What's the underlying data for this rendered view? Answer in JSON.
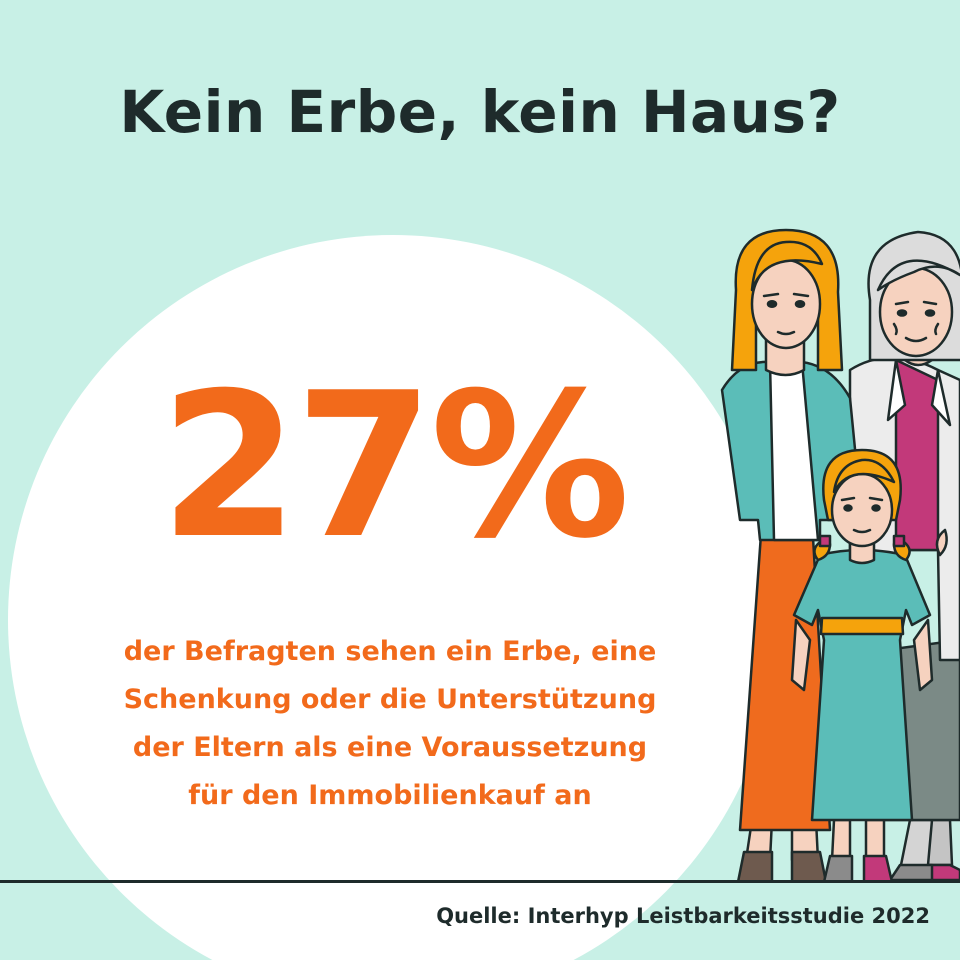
{
  "headline": "Kein Erbe, kein Haus?",
  "stat": {
    "value": "27%",
    "lines": [
      "der Befragten sehen ein Erbe, eine",
      "Schenkung oder die Unterstützung",
      "der Eltern als eine Voraussetzung",
      "für den Immobilienkauf an"
    ]
  },
  "source": "Quelle: Interhyp Leistbarkeitsstudie 2022",
  "colors": {
    "background": "#c8f0e6",
    "accent": "#f26a1b",
    "text_dark": "#1e2b2b",
    "circle": "#ffffff"
  },
  "illustration": {
    "figures": [
      "mother",
      "grandmother",
      "girl"
    ]
  }
}
